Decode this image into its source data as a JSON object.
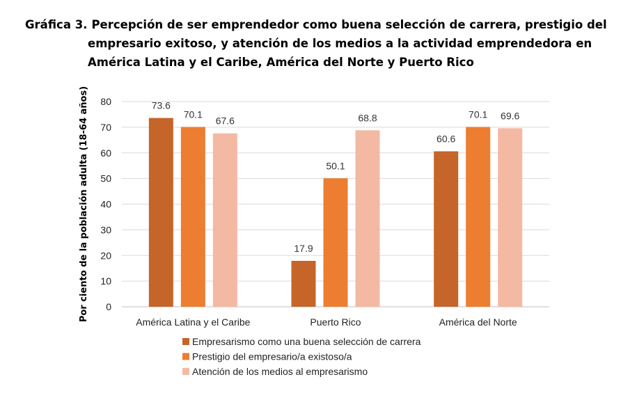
{
  "title": {
    "prefix": "Gráfica 3.",
    "line1": "Percepción de ser emprendedor como buena selección de carrera, prestigio del",
    "line2": "empresario exitoso, y atención de los medios a la actividad emprendedora en",
    "line3": "América Latina y el Caribe, América del Norte y Puerto Rico"
  },
  "chart_data": {
    "type": "bar",
    "title": "Percepción de ser emprendedor como buena selección de carrera, prestigio del empresario exitoso, y atención de los medios a la actividad emprendedora en América Latina y el Caribe, América del Norte y Puerto Rico",
    "xlabel": "",
    "ylabel": "Por ciento de la población adulta (18-64 años)",
    "ylim": [
      0,
      80
    ],
    "yticks": [
      0,
      10,
      20,
      30,
      40,
      50,
      60,
      70,
      80
    ],
    "categories": [
      "América Latina y el Caribe",
      "Puerto Rico",
      "América del Norte"
    ],
    "series": [
      {
        "name": "Empresarismo como una buena selección de carrera",
        "values": [
          73.6,
          17.9,
          60.6
        ],
        "color": "#C5652A"
      },
      {
        "name": "Prestigio del empresario/a existoso/a",
        "values": [
          70.1,
          50.1,
          70.1
        ],
        "color": "#ED7D31"
      },
      {
        "name": "Atención de los medios al empresarismo",
        "values": [
          67.6,
          68.8,
          69.6
        ],
        "color": "#F4B9A3"
      }
    ],
    "grid": true,
    "legend_position": "bottom"
  }
}
